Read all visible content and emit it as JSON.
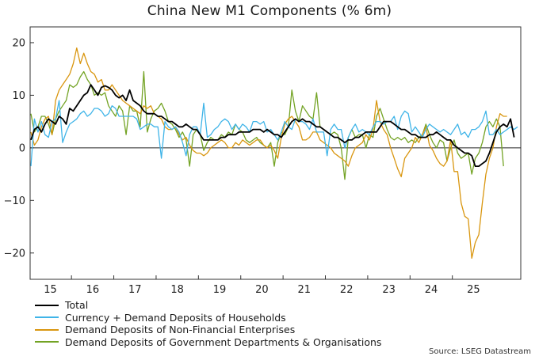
{
  "chart_data": {
    "type": "line",
    "title": "China New M1 Components (% 6m)",
    "xlabel": "",
    "ylabel": "",
    "x_tick_labels": [
      "15",
      "16",
      "17",
      "18",
      "19",
      "20",
      "21",
      "22",
      "23",
      "24",
      "25"
    ],
    "y_ticks": [
      -20,
      -10,
      0,
      10,
      20
    ],
    "ylim": [
      -25,
      23
    ],
    "legend_position": "bottom-left",
    "frequency": "monthly",
    "start": "2015-01",
    "grid": false,
    "source": "Source: LSEG Datastream",
    "series": [
      {
        "name": "Total",
        "color": "#000000",
        "values": [
          1.5,
          3.5,
          4,
          3,
          4.5,
          5.5,
          5,
          4.5,
          6,
          5.5,
          4.5,
          7.5,
          7,
          8,
          9,
          10,
          10.5,
          12,
          11,
          10,
          11.5,
          11.8,
          11.5,
          11,
          10,
          9.5,
          10,
          9,
          11,
          9,
          8.5,
          8,
          7,
          6.5,
          6.5,
          6.5,
          6,
          6,
          5.5,
          5,
          5,
          4.5,
          4,
          4,
          4.5,
          4,
          3.5,
          3.5,
          2.5,
          1.5,
          1.5,
          1.5,
          1.5,
          1.5,
          2,
          2,
          2.5,
          2.5,
          2.5,
          3,
          3,
          3,
          3,
          3.5,
          3.5,
          3.5,
          3,
          3.5,
          3,
          2.5,
          2.5,
          2,
          3,
          4,
          5,
          5.5,
          5,
          5.5,
          5,
          5,
          4.5,
          4,
          4,
          3.5,
          3,
          2.5,
          2,
          2,
          1.5,
          1,
          1.5,
          1.5,
          2,
          2,
          2.5,
          3,
          3,
          3,
          3,
          4,
          5,
          5,
          5,
          4.5,
          4,
          3.5,
          3.5,
          3,
          2.5,
          2.5,
          2,
          2,
          2,
          2.5,
          2.5,
          3,
          2.5,
          2,
          1.5,
          1.5,
          0.5,
          0,
          -0.5,
          -1,
          -1,
          -1.5,
          -3.5,
          -3.5,
          -3,
          -2.5,
          -1,
          1,
          3,
          4,
          4.5,
          4,
          5.5,
          2
        ]
      },
      {
        "name": "Currency + Demand Deposits of Households",
        "color": "#3fb4e8",
        "values": [
          -3.5,
          5.5,
          3,
          5,
          2.5,
          2,
          5,
          5.5,
          9,
          1,
          3,
          4.5,
          5,
          5.5,
          6.5,
          7,
          6,
          6.5,
          7.5,
          7.5,
          7,
          6,
          6.5,
          8,
          7.5,
          6,
          6,
          6,
          6,
          6,
          5.5,
          3.5,
          4,
          4.5,
          4.5,
          4,
          4,
          -2,
          5,
          4,
          3.5,
          4,
          3,
          1,
          -1.5,
          2.5,
          4,
          4,
          2.5,
          8.5,
          2,
          2.5,
          3.5,
          4,
          5,
          5.5,
          5,
          3.5,
          4.5,
          3.5,
          4.5,
          4,
          3,
          5,
          5,
          4.5,
          5,
          3,
          3.5,
          2.5,
          1.5,
          3,
          5,
          4,
          3.5,
          5.5,
          5,
          5,
          4.5,
          3.5,
          5.5,
          3,
          3,
          3,
          -1.5,
          3.5,
          4.5,
          3.5,
          3.5,
          0,
          2,
          3.5,
          4.5,
          3,
          3.5,
          3,
          2.5,
          4,
          5,
          5,
          4.5,
          5,
          5,
          6,
          3.5,
          6,
          7,
          6.5,
          3,
          4,
          3,
          2,
          3.5,
          4.5,
          4,
          3.5,
          3,
          3.5,
          3,
          2.5,
          3.5,
          4.5,
          2.5,
          3,
          2,
          3.5,
          3.5,
          4,
          5,
          7,
          2.5,
          2.5,
          3.5,
          2.5,
          3,
          3.5,
          4,
          3.5,
          4
        ]
      },
      {
        "name": "Demand Deposits of Non-Financial Enterprises",
        "color": "#d9960f",
        "values": [
          3,
          0.5,
          1.5,
          4,
          5.5,
          6,
          2.5,
          9,
          11,
          12,
          13,
          14,
          16,
          19,
          16,
          18,
          16,
          14.5,
          14,
          12.5,
          13,
          11,
          11,
          12,
          11,
          10,
          9,
          8.5,
          8,
          7.5,
          7,
          6.5,
          8,
          7.5,
          8,
          6.5,
          6,
          5.5,
          4,
          3.5,
          3.5,
          4,
          2.5,
          1.5,
          2,
          0.5,
          -0.5,
          -1,
          -1,
          -1.5,
          -1,
          0,
          0.5,
          1,
          1.5,
          1,
          0,
          0,
          1,
          0.5,
          1.5,
          1,
          0.5,
          1,
          1.5,
          1.5,
          0.5,
          0,
          0.5,
          -0.5,
          -2,
          2,
          4.5,
          5.5,
          6,
          5,
          4,
          1.5,
          1.5,
          2,
          3,
          3,
          1.5,
          1,
          0.5,
          0,
          -1,
          -1.5,
          -2,
          -2.5,
          -3.5,
          -1.5,
          0,
          0.5,
          1,
          2.5,
          1.5,
          3.5,
          9,
          5,
          3.5,
          2.5,
          0,
          -2,
          -4,
          -5.5,
          -2,
          -1,
          0,
          2,
          1,
          2.5,
          4,
          0.5,
          -0.5,
          -2,
          -3,
          -3.5,
          -2.5,
          1.5,
          -4.5,
          -4.5,
          -10.5,
          -13,
          -13.5,
          -21,
          -18,
          -16.5,
          -10.5,
          -5,
          -2,
          0,
          4,
          6.5,
          6,
          6
        ]
      },
      {
        "name": "Demand Deposits of Government Departments & Organisations",
        "color": "#73a324",
        "values": [
          6.5,
          3,
          4,
          6,
          6,
          4.5,
          2.5,
          5.5,
          7,
          8,
          9,
          12,
          11.5,
          12,
          13.5,
          14.5,
          13,
          12,
          10,
          10.5,
          10,
          10.5,
          8,
          7,
          6,
          8,
          7,
          2.5,
          8,
          7,
          7,
          4,
          14.5,
          3,
          5.5,
          7,
          7.5,
          8.5,
          7,
          5,
          4.5,
          3.5,
          2,
          3,
          1.5,
          -3.5,
          2.5,
          3.5,
          2.5,
          -0.5,
          1,
          2,
          1.5,
          1.5,
          2.5,
          2,
          3,
          2.5,
          4.5,
          3.5,
          3,
          1.5,
          1,
          1.5,
          2,
          1,
          0.5,
          0,
          1,
          -3.5,
          1,
          3,
          2.5,
          4,
          11,
          7,
          5,
          8,
          7,
          6,
          5.5,
          10.5,
          4,
          3.5,
          3,
          2.5,
          3,
          2.5,
          0,
          -6,
          2,
          3.5,
          2,
          2.5,
          2.5,
          0,
          2.5,
          2,
          6,
          7.5,
          5.5,
          3.5,
          2,
          1.5,
          2,
          1.5,
          2,
          1,
          1.5,
          1,
          2,
          2.5,
          4.5,
          2.5,
          1,
          0,
          1.5,
          1,
          -2.5,
          0,
          1.5,
          -1,
          -2,
          -1.5,
          -1,
          -5,
          -2,
          -1,
          1,
          4,
          5,
          4,
          5.5,
          4,
          -3.5
        ]
      }
    ]
  }
}
